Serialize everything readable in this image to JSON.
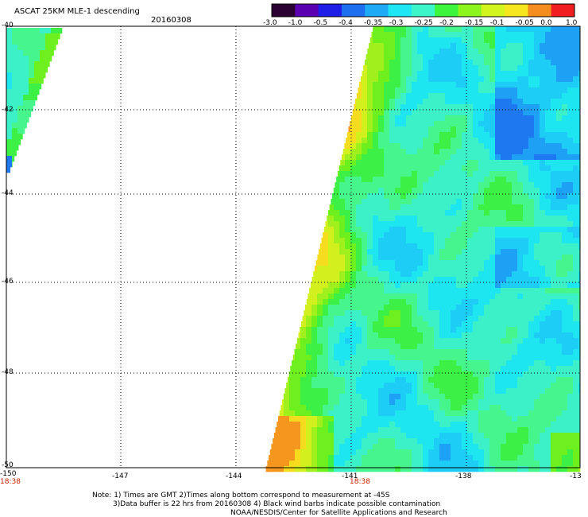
{
  "header": {
    "title": "ASCAT 25KM MLE-1 descending",
    "date": "20160308"
  },
  "colorbar": {
    "labels": [
      "-3.0",
      "-1.0",
      "-0.5",
      "-0.4",
      "-0.35",
      "-0.3",
      "-0.25",
      "-0.2",
      "-0.15",
      "-0.1",
      "-0.05",
      "0.0",
      "1.0"
    ],
    "colors": [
      "#2a0030",
      "#5a00b0",
      "#1e1ee6",
      "#1e6ef0",
      "#1eaaf5",
      "#1ee6f5",
      "#3cf5c8",
      "#3cf53c",
      "#8cf51e",
      "#d2f51e",
      "#f5e61e",
      "#f58c1e",
      "#f01e1e"
    ]
  },
  "map": {
    "lat_labels": [
      "-40",
      "-42",
      "-44",
      "-46",
      "-48",
      "-50"
    ],
    "lon_labels": [
      "-150",
      "-147",
      "-144",
      "-141",
      "-138",
      "-13"
    ],
    "times": [
      "18:38",
      "18:38"
    ]
  },
  "notes": {
    "line1": "Note: 1) Times are GMT 2)Times along bottom correspond to measurement at -45S",
    "line2": "3)Data buffer is 22 hrs from 20160308 4) Black wind barbs indicate possible contamination",
    "line3": "NOAA/NESDIS/Center for Satellite Applications and Research"
  }
}
